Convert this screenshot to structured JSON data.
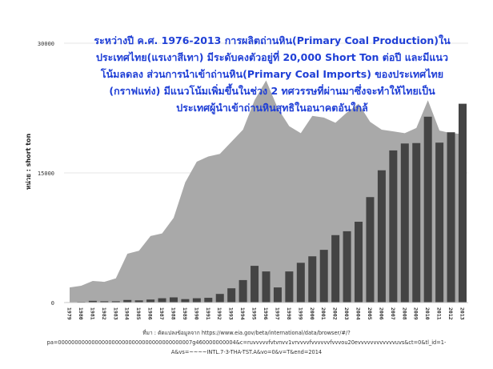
{
  "title": {
    "lines": [
      "ระหว่างปี ค.ศ. 1976-2013 การผลิตถ่านหิน(Primary Coal Production)ใน",
      "ประเทศไทย(แรเงาสีเทา) มีระดับคงตัวอยู่ที่ 20,000 Short Ton ต่อปี และมีแนว",
      "โน้มลดลง ส่วนการนำเข้าถ่านหิน(Primary Coal Imports) ของประเทศไทย",
      "(กราฟแท่ง) มีแนวโน้มเพิ่มขึ้นในช่วง 2 ทศวรรษที่ผ่านมาซึ่งจะทำให้ไทยเป็น",
      "ประเทศผู้นำเข้าถ่านหินสุทธิในอนาคตอันใกล้"
    ],
    "color": "#1f3fd6"
  },
  "y_axis": {
    "label": "หน่วย : short ton",
    "ticks": [
      "0",
      "15000",
      "30000"
    ]
  },
  "source": {
    "lines": [
      "ที่มา : ดัดแปลงข้อมูลจาก https://www.eia.gov/beta/international/data/browser/#/?",
      "pa=0000000000000000000000000000000000000007g460000000004&c=ruvvvvvfvtvnvv1vrvvvvfvvvvvvfvvvou20evvvvvvvvvvvvuvs&ct=0&tl_id=1-",
      "A&vs=~~~~INTL.7-3-THA-TST.A&vo=0&v=T&end=2014"
    ]
  },
  "colors": {
    "production_area": "#a9a9a9",
    "imports_bar": "#444444",
    "gridline": "#e6e6e6",
    "axis_text": "#333333"
  },
  "chart_data": {
    "type": "bar",
    "title": "ระหว่างปี ค.ศ. 1976-2013 การผลิตถ่านหิน(Primary Coal Production)ในประเทศไทย(แรเงาสีเทา) มีระดับคงตัวอยู่ที่ 20,000 Short Ton ต่อปี และมีแนวโน้มลดลง ส่วนการนำเข้าถ่านหิน(Primary Coal Imports) ของประเทศไทย(กราฟแท่ง) มีแนวโน้มเพิ่มขึ้นในช่วง 2 ทศวรรษที่ผ่านมาซึ่งจะทำให้ไทยเป็นประเทศผู้นำเข้าถ่านหินสุทธิในอนาคตอันใกล้",
    "xlabel": "",
    "ylabel": "หน่วย : short ton",
    "ylim": [
      0,
      30000
    ],
    "yticks": [
      0,
      15000,
      30000
    ],
    "grid": true,
    "legend": "none",
    "categories": [
      "1979",
      "1980",
      "1981",
      "1982",
      "1983",
      "1984",
      "1985",
      "1986",
      "1987",
      "1988",
      "1989",
      "1990",
      "1991",
      "1992",
      "1993",
      "1994",
      "1995",
      "1996",
      "1997",
      "1998",
      "1999",
      "2000",
      "2001",
      "2002",
      "2003",
      "2004",
      "2005",
      "2006",
      "2007",
      "2008",
      "2009",
      "2010",
      "2011",
      "2012",
      "2013"
    ],
    "series": [
      {
        "name": "Primary Coal Production (area, gray)",
        "type": "area",
        "values": [
          1750,
          1950,
          2500,
          2400,
          2800,
          5650,
          6000,
          7700,
          8000,
          9800,
          13900,
          16300,
          16900,
          17200,
          18600,
          20000,
          23400,
          25700,
          22500,
          20400,
          19600,
          21600,
          21400,
          20800,
          22000,
          23000,
          20900,
          20000,
          19800,
          19600,
          20200,
          23400,
          19900,
          19600,
          19500
        ]
      },
      {
        "name": "Primary Coal Imports (bars, dark)",
        "type": "bar",
        "values": [
          50,
          80,
          200,
          150,
          150,
          300,
          250,
          350,
          500,
          600,
          400,
          500,
          550,
          1000,
          1650,
          2600,
          4250,
          3600,
          1750,
          3600,
          4600,
          5350,
          6100,
          7800,
          8250,
          9350,
          12200,
          15300,
          17600,
          18400,
          18450,
          21500,
          18500,
          19700,
          23000
        ]
      }
    ]
  }
}
